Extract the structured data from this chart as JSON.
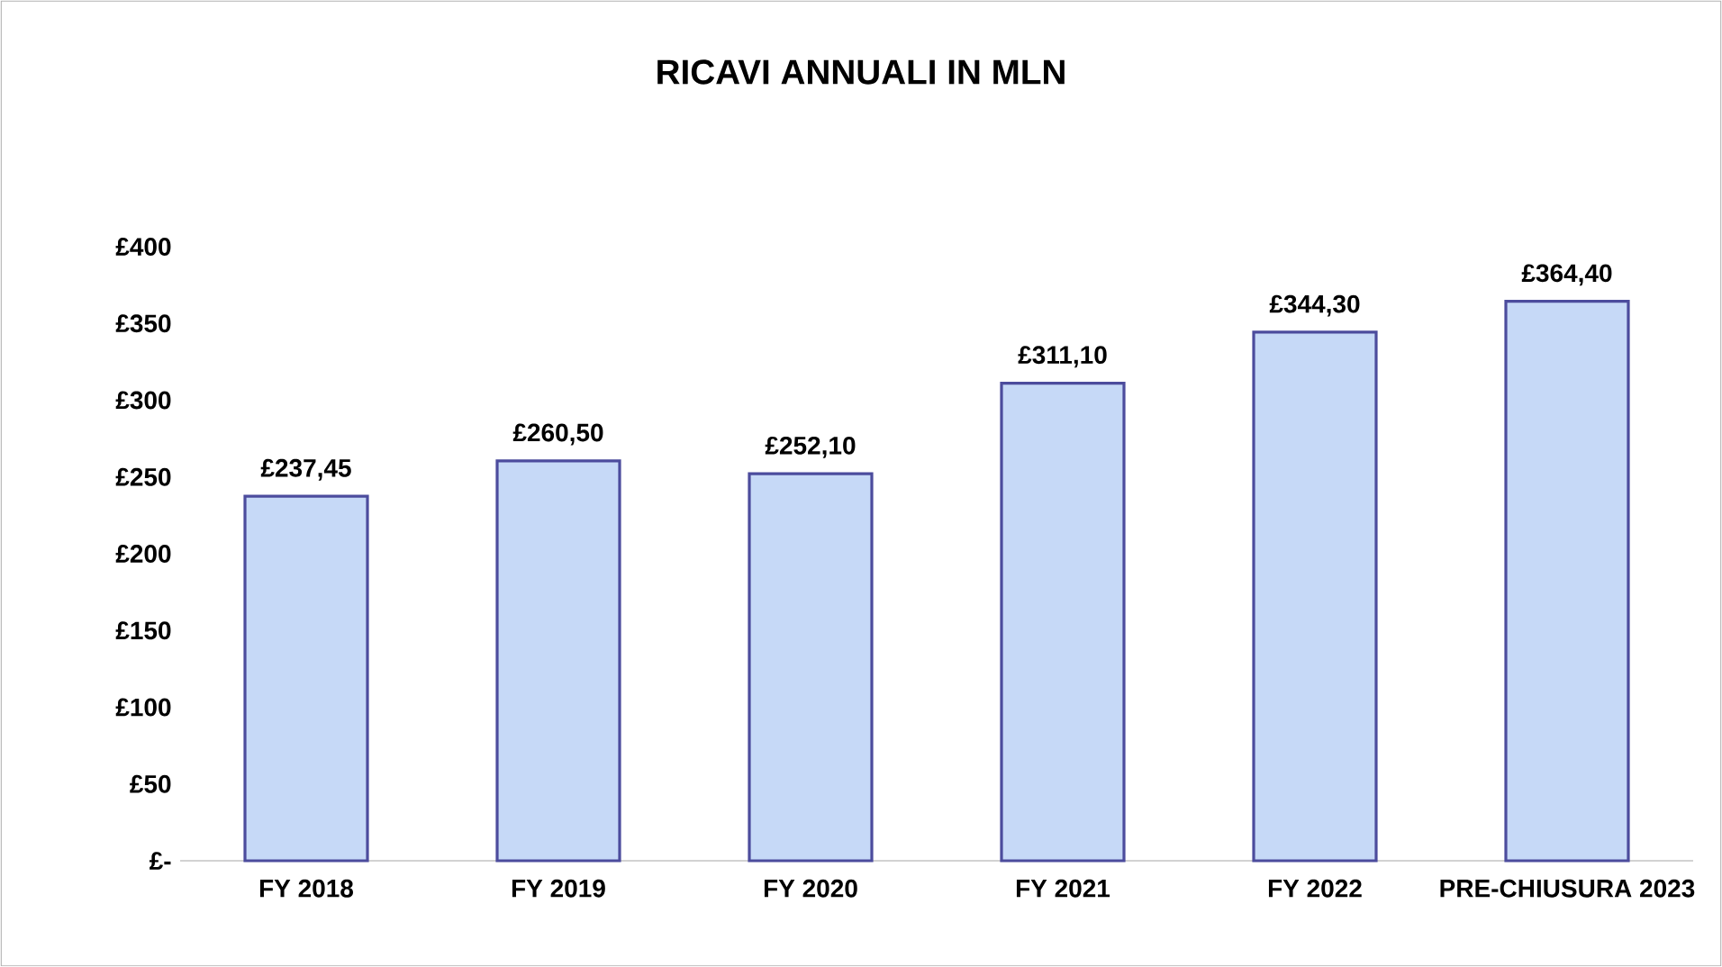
{
  "chart_data": {
    "type": "bar",
    "title": "RICAVI ANNUALI IN MLN",
    "categories": [
      "FY 2018",
      "FY 2019",
      "FY 2020",
      "FY 2021",
      "FY 2022",
      "PRE-CHIUSURA 2023"
    ],
    "values": [
      237.45,
      260.5,
      252.1,
      311.1,
      344.3,
      364.4
    ],
    "value_labels": [
      "£237,45",
      "£260,50",
      "£252,10",
      "£311,10",
      "£344,30",
      "£364,40"
    ],
    "color": "#c6d9f7",
    "ylim": [
      0,
      400
    ],
    "yticks": [
      {
        "value": 0,
        "label": "£-"
      },
      {
        "value": 50,
        "label": "£50"
      },
      {
        "value": 100,
        "label": "£100"
      },
      {
        "value": 150,
        "label": "£150"
      },
      {
        "value": 200,
        "label": "£200"
      },
      {
        "value": 250,
        "label": "£250"
      },
      {
        "value": 300,
        "label": "£300"
      },
      {
        "value": 350,
        "label": "£350"
      },
      {
        "value": 400,
        "label": "£400"
      }
    ],
    "grid": false
  }
}
